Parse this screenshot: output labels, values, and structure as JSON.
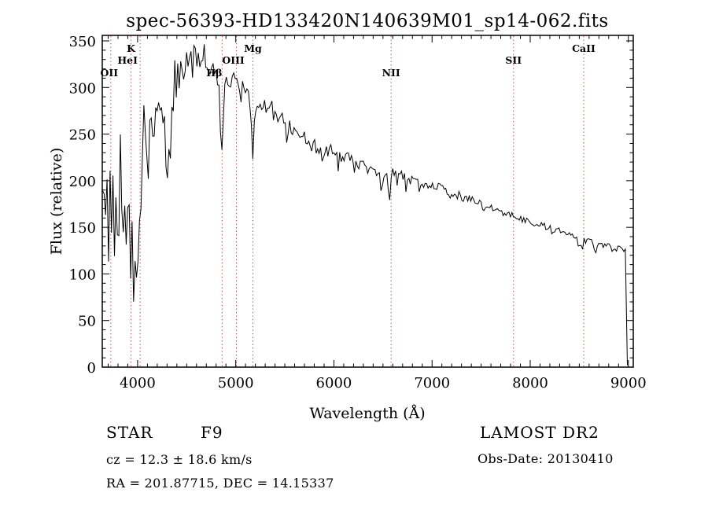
{
  "chart_data": {
    "type": "line",
    "title": "spec-56393-HD133420N140639M01_sp14-062.fits",
    "xlabel": "Wavelength (Å)",
    "ylabel": "Flux (relative)",
    "xlim": [
      3640,
      9050
    ],
    "ylim": [
      0,
      350
    ],
    "x_major_ticks": [
      4000,
      5000,
      6000,
      7000,
      8000,
      9000
    ],
    "x_minor_step": 100,
    "y_major_ticks": [
      0,
      50,
      100,
      150,
      200,
      250,
      300,
      350
    ],
    "y_minor_step": 10,
    "grid": false,
    "legend": "none",
    "line_color": "#000000",
    "marker_line_color": "#a03c3c",
    "spectral_lines": [
      {
        "label": "OII",
        "wavelength": 3727,
        "row": 2,
        "dx": -2
      },
      {
        "label": "K",
        "wavelength": 3933,
        "row": 0,
        "dx": 0
      },
      {
        "label": "HeI",
        "wavelength": 4026,
        "row": 1,
        "dx": -16
      },
      {
        "label": "Hβ",
        "wavelength": 4861,
        "row": 2,
        "dx": -10
      },
      {
        "label": "OIII",
        "wavelength": 5007,
        "row": 1,
        "dx": -4
      },
      {
        "label": "Mg",
        "wavelength": 5175,
        "row": 0,
        "dx": 0
      },
      {
        "label": "NII",
        "wavelength": 6583,
        "row": 2,
        "dx": 0
      },
      {
        "label": "SII",
        "wavelength": 7830,
        "row": 1,
        "dx": 0
      },
      {
        "label": "CaII",
        "wavelength": 8545,
        "row": 0,
        "dx": 0
      }
    ],
    "sample_step_angstrom": 15,
    "series": [
      {
        "name": "flux-spectrum",
        "envelope": [
          [
            3640,
            150
          ],
          [
            3655,
            215
          ],
          [
            3668,
            120
          ],
          [
            3680,
            200
          ],
          [
            3692,
            235
          ],
          [
            3705,
            140
          ],
          [
            3718,
            225
          ],
          [
            3727,
            95
          ],
          [
            3740,
            205
          ],
          [
            3752,
            235
          ],
          [
            3764,
            115
          ],
          [
            3776,
            185
          ],
          [
            3788,
            95
          ],
          [
            3800,
            210
          ],
          [
            3812,
            160
          ],
          [
            3824,
            232
          ],
          [
            3836,
            128
          ],
          [
            3848,
            198
          ],
          [
            3860,
            118
          ],
          [
            3872,
            182
          ],
          [
            3884,
            98
          ],
          [
            3896,
            172
          ],
          [
            3908,
            120
          ],
          [
            3920,
            205
          ],
          [
            3933,
            85
          ],
          [
            3945,
            165
          ],
          [
            3955,
            62
          ],
          [
            3968,
            140
          ],
          [
            3978,
            88
          ],
          [
            3988,
            135
          ],
          [
            4000,
            57
          ],
          [
            4012,
            170
          ],
          [
            4026,
            118
          ],
          [
            4040,
            255
          ],
          [
            4055,
            228
          ],
          [
            4070,
            278
          ],
          [
            4085,
            242
          ],
          [
            4102,
            182
          ],
          [
            4118,
            262
          ],
          [
            4134,
            238
          ],
          [
            4150,
            278
          ],
          [
            4168,
            252
          ],
          [
            4186,
            276
          ],
          [
            4204,
            258
          ],
          [
            4222,
            284
          ],
          [
            4240,
            266
          ],
          [
            4258,
            288
          ],
          [
            4276,
            250
          ],
          [
            4294,
            230
          ],
          [
            4310,
            172
          ],
          [
            4326,
            248
          ],
          [
            4340,
            212
          ],
          [
            4356,
            288
          ],
          [
            4372,
            308
          ],
          [
            4390,
            298
          ],
          [
            4410,
            318
          ],
          [
            4430,
            308
          ],
          [
            4452,
            332
          ],
          [
            4474,
            318
          ],
          [
            4496,
            338
          ],
          [
            4518,
            328
          ],
          [
            4540,
            342
          ],
          [
            4562,
            330
          ],
          [
            4584,
            340
          ],
          [
            4606,
            326
          ],
          [
            4628,
            338
          ],
          [
            4650,
            330
          ],
          [
            4672,
            336
          ],
          [
            4694,
            326
          ],
          [
            4716,
            332
          ],
          [
            4738,
            322
          ],
          [
            4760,
            330
          ],
          [
            4782,
            318
          ],
          [
            4804,
            308
          ],
          [
            4826,
            295
          ],
          [
            4845,
            262
          ],
          [
            4861,
            232
          ],
          [
            4877,
            288
          ],
          [
            4893,
            308
          ],
          [
            4910,
            312
          ],
          [
            4930,
            304
          ],
          [
            4950,
            310
          ],
          [
            4970,
            300
          ],
          [
            4990,
            306
          ],
          [
            5010,
            296
          ],
          [
            5030,
            300
          ],
          [
            5050,
            294
          ],
          [
            5070,
            298
          ],
          [
            5090,
            290
          ],
          [
            5110,
            294
          ],
          [
            5130,
            284
          ],
          [
            5150,
            268
          ],
          [
            5166,
            242
          ],
          [
            5176,
            226
          ],
          [
            5188,
            252
          ],
          [
            5202,
            282
          ],
          [
            5220,
            288
          ],
          [
            5240,
            283
          ],
          [
            5260,
            286
          ],
          [
            5280,
            280
          ],
          [
            5300,
            283
          ],
          [
            5330,
            277
          ],
          [
            5360,
            280
          ],
          [
            5400,
            272
          ],
          [
            5440,
            268
          ],
          [
            5480,
            264
          ],
          [
            5520,
            260
          ],
          [
            5560,
            256
          ],
          [
            5600,
            253
          ],
          [
            5650,
            249
          ],
          [
            5700,
            245
          ],
          [
            5750,
            241
          ],
          [
            5800,
            238
          ],
          [
            5850,
            233
          ],
          [
            5875,
            226
          ],
          [
            5890,
            212
          ],
          [
            5898,
            222
          ],
          [
            5912,
            230
          ],
          [
            5950,
            234
          ],
          [
            6000,
            232
          ],
          [
            6050,
            229
          ],
          [
            6100,
            227
          ],
          [
            6150,
            224
          ],
          [
            6200,
            221
          ],
          [
            6250,
            218
          ],
          [
            6300,
            215
          ],
          [
            6350,
            212
          ],
          [
            6400,
            209
          ],
          [
            6450,
            206
          ],
          [
            6490,
            199
          ],
          [
            6515,
            208
          ],
          [
            6540,
            203
          ],
          [
            6556,
            182
          ],
          [
            6565,
            170
          ],
          [
            6578,
            204
          ],
          [
            6592,
            209
          ],
          [
            6620,
            211
          ],
          [
            6650,
            209
          ],
          [
            6700,
            206
          ],
          [
            6750,
            203
          ],
          [
            6800,
            201
          ],
          [
            6850,
            199
          ],
          [
            6868,
            190
          ],
          [
            6885,
            198
          ],
          [
            6950,
            197
          ],
          [
            7000,
            195
          ],
          [
            7050,
            193
          ],
          [
            7100,
            191
          ],
          [
            7150,
            187
          ],
          [
            7185,
            179
          ],
          [
            7210,
            184
          ],
          [
            7250,
            185
          ],
          [
            7300,
            183
          ],
          [
            7350,
            181
          ],
          [
            7400,
            179
          ],
          [
            7450,
            177
          ],
          [
            7500,
            175
          ],
          [
            7530,
            167
          ],
          [
            7560,
            171
          ],
          [
            7600,
            171
          ],
          [
            7650,
            169
          ],
          [
            7700,
            167
          ],
          [
            7750,
            165
          ],
          [
            7800,
            163
          ],
          [
            7850,
            161
          ],
          [
            7900,
            159
          ],
          [
            7950,
            157
          ],
          [
            8000,
            156
          ],
          [
            8050,
            154
          ],
          [
            8100,
            152
          ],
          [
            8150,
            151
          ],
          [
            8200,
            150
          ],
          [
            8228,
            141
          ],
          [
            8250,
            148
          ],
          [
            8300,
            147
          ],
          [
            8350,
            146
          ],
          [
            8400,
            144
          ],
          [
            8450,
            142
          ],
          [
            8480,
            137
          ],
          [
            8498,
            127
          ],
          [
            8512,
            139
          ],
          [
            8530,
            124
          ],
          [
            8545,
            137
          ],
          [
            8570,
            135
          ],
          [
            8600,
            134
          ],
          [
            8650,
            133
          ],
          [
            8662,
            121
          ],
          [
            8680,
            132
          ],
          [
            8700,
            132
          ],
          [
            8750,
            131
          ],
          [
            8800,
            130
          ],
          [
            8850,
            129
          ],
          [
            8900,
            127
          ],
          [
            8950,
            126
          ],
          [
            8985,
            125
          ],
          [
            8990,
            2
          ]
        ],
        "noise": {
          "seed": 104729,
          "regions": [
            [
              3640,
              4040,
              35
            ],
            [
              4040,
              4420,
              26
            ],
            [
              4420,
              5250,
              14
            ],
            [
              5250,
              5950,
              9
            ],
            [
              5950,
              6650,
              6
            ],
            [
              6650,
              7450,
              5
            ],
            [
              7450,
              8985,
              3.5
            ]
          ],
          "spike_probability": 0.05,
          "spike_depth_factor": 2.5
        }
      }
    ]
  },
  "annotations": {
    "classification": "STAR",
    "subclass": "F9",
    "cz_line": "cz = 12.3 ± 18.6 km/s",
    "coords_line": "RA = 201.87715, DEC =  14.15337",
    "survey": "LAMOST DR2",
    "obs_date_line": "Obs-Date: 20130410"
  }
}
